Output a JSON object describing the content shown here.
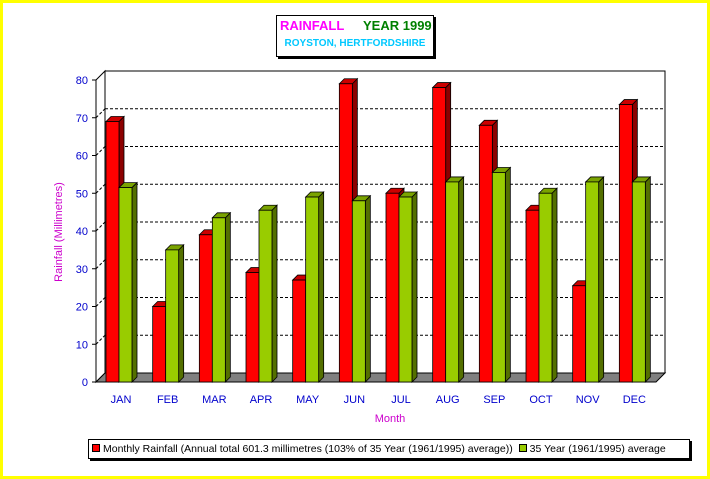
{
  "title": {
    "main": "RAINFALL",
    "year": "YEAR 1999",
    "subtitle": "ROYSTON, HERTFORDSHIRE"
  },
  "colors": {
    "series1": "#ff0000",
    "series2": "#99cc00",
    "axis_text": "#0000cc",
    "axis_title": "#cc00cc"
  },
  "chart_data": {
    "type": "bar",
    "categories": [
      "JAN",
      "FEB",
      "MAR",
      "APR",
      "MAY",
      "JUN",
      "JUL",
      "AUG",
      "SEP",
      "OCT",
      "NOV",
      "DEC"
    ],
    "series": [
      {
        "name": "Monthly Rainfall (Annual total 601.3 millimetres (103% of 35 Year (1961/1995) average))",
        "values": [
          69,
          20,
          39,
          29,
          27,
          79,
          50,
          78,
          68,
          45.5,
          25.5,
          73.5
        ]
      },
      {
        "name": "35 Year (1961/1995) average",
        "values": [
          51.5,
          35,
          43.5,
          45.5,
          49,
          48,
          49,
          53,
          55.5,
          50,
          53,
          53
        ]
      }
    ],
    "xlabel": "Month",
    "ylabel": "Rainfall (Millimetres)",
    "ylim": [
      0,
      80
    ],
    "yticks": [
      0,
      10,
      20,
      30,
      40,
      50,
      60,
      70,
      80
    ],
    "grid": "dashed horizontal",
    "legend_position": "bottom"
  }
}
